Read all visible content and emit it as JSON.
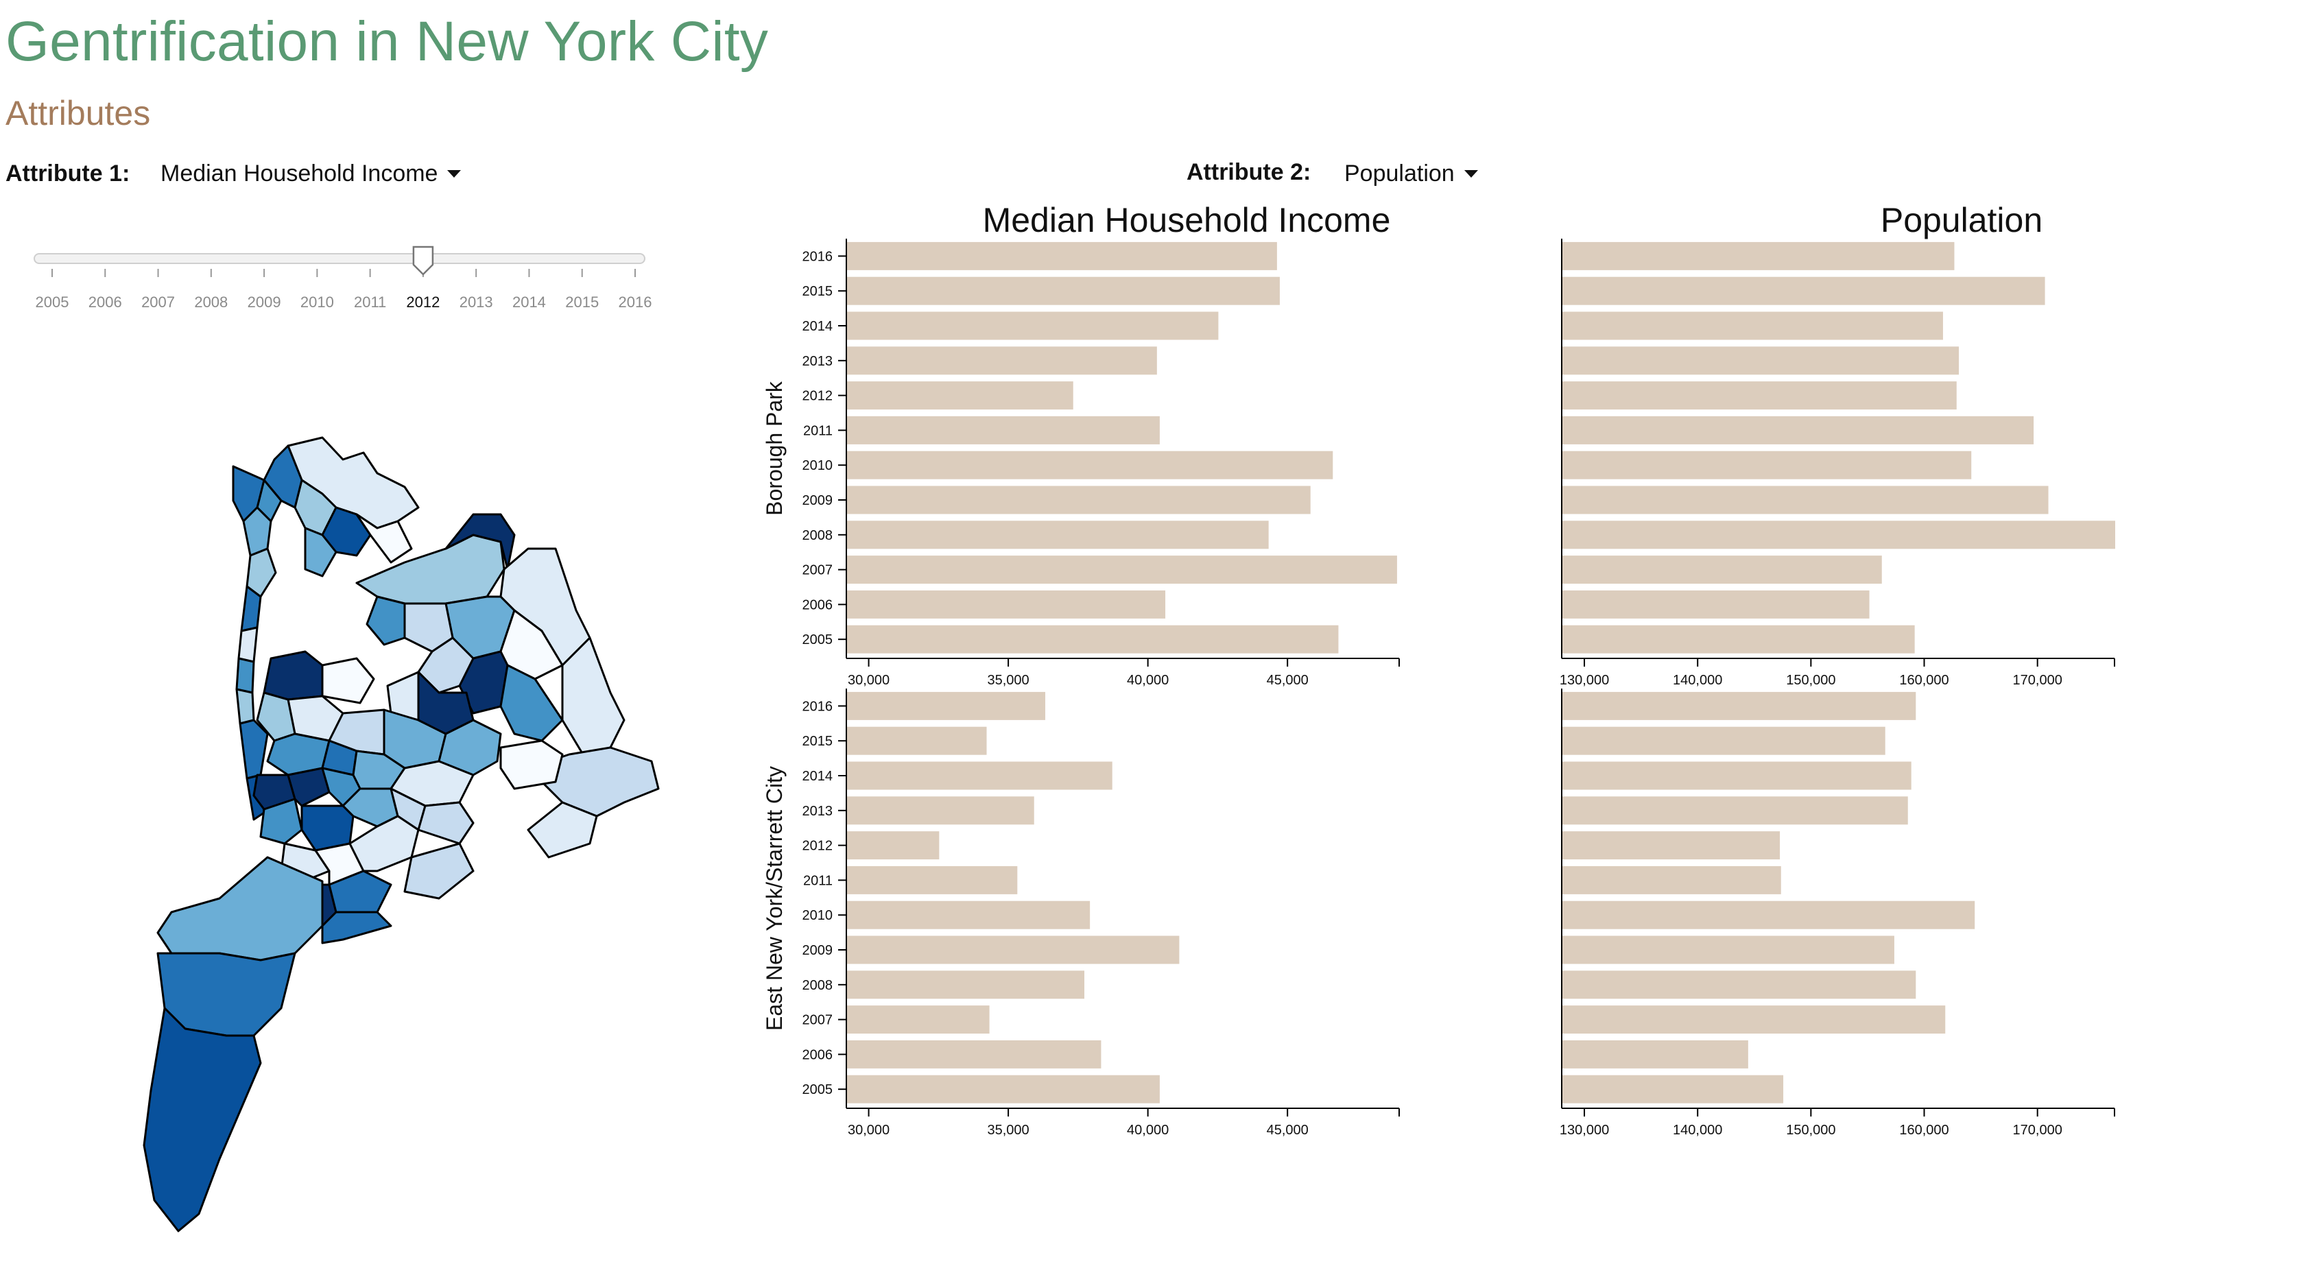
{
  "header": {
    "title": "Gentrification in New York City",
    "subtitle": "Attributes"
  },
  "controls": {
    "attribute1_label": "Attribute 1:",
    "attribute1_value": "Median Household Income",
    "attribute2_label": "Attribute 2:",
    "attribute2_value": "Population",
    "dropdown_icon": "caret-down-icon"
  },
  "year_slider": {
    "years": [
      "2005",
      "2006",
      "2007",
      "2008",
      "2009",
      "2010",
      "2011",
      "2012",
      "2013",
      "2014",
      "2015",
      "2016"
    ],
    "selected": "2012"
  },
  "map": {
    "palette": [
      "#f7fbff",
      "#deebf7",
      "#c6dbef",
      "#9ecae1",
      "#6baed6",
      "#4292c6",
      "#2171b5",
      "#08519c",
      "#08306b"
    ],
    "stroke": "#000000"
  },
  "colors": {
    "bar": "#dccdbd",
    "title_green": "#5a9a73",
    "subtitle_brown": "#a47c5c"
  },
  "chart_data": [
    {
      "type": "bar",
      "orientation": "horizontal",
      "title": "Median Household Income",
      "ylabel": "Borough Park",
      "categories": [
        "2016",
        "2015",
        "2014",
        "2013",
        "2012",
        "2011",
        "2010",
        "2009",
        "2008",
        "2007",
        "2006",
        "2005"
      ],
      "values": [
        44600,
        44700,
        42500,
        40300,
        37300,
        40400,
        46600,
        45800,
        44300,
        48900,
        40600,
        46800
      ],
      "xlim": [
        29200,
        49000
      ],
      "xticks": [
        "30,000",
        "35,000",
        "40,000",
        "45,000"
      ],
      "xtick_values": [
        30000,
        35000,
        40000,
        45000
      ]
    },
    {
      "type": "bar",
      "orientation": "horizontal",
      "title": "Population",
      "ylabel": "",
      "categories": [
        "2016",
        "2015",
        "2014",
        "2013",
        "2012",
        "2011",
        "2010",
        "2009",
        "2008",
        "2007",
        "2006",
        "2005"
      ],
      "values": [
        162600,
        170600,
        161600,
        163000,
        162800,
        169600,
        164100,
        170900,
        176800,
        156200,
        155100,
        159100
      ],
      "xlim": [
        128000,
        176800
      ],
      "xticks": [
        "130,000",
        "140,000",
        "150,000",
        "160,000",
        "170,000"
      ],
      "xtick_values": [
        130000,
        140000,
        150000,
        160000,
        170000
      ]
    },
    {
      "type": "bar",
      "orientation": "horizontal",
      "title": "",
      "ylabel": "East New York/Starrett City",
      "categories": [
        "2016",
        "2015",
        "2014",
        "2013",
        "2012",
        "2011",
        "2010",
        "2009",
        "2008",
        "2007",
        "2006",
        "2005"
      ],
      "values": [
        36300,
        34200,
        38700,
        35900,
        32500,
        35300,
        37900,
        41100,
        37700,
        34300,
        38300,
        40400
      ],
      "xlim": [
        29200,
        49000
      ],
      "xticks": [
        "30,000",
        "35,000",
        "40,000",
        "45,000"
      ],
      "xtick_values": [
        30000,
        35000,
        40000,
        45000
      ]
    },
    {
      "type": "bar",
      "orientation": "horizontal",
      "title": "",
      "ylabel": "",
      "categories": [
        "2016",
        "2015",
        "2014",
        "2013",
        "2012",
        "2011",
        "2010",
        "2009",
        "2008",
        "2007",
        "2006",
        "2005"
      ],
      "values": [
        159200,
        156500,
        158800,
        158500,
        147200,
        147300,
        164400,
        157300,
        159200,
        161800,
        144400,
        147500
      ],
      "xlim": [
        128000,
        176800
      ],
      "xticks": [
        "130,000",
        "140,000",
        "150,000",
        "160,000",
        "170,000"
      ],
      "xtick_values": [
        130000,
        140000,
        150000,
        160000,
        170000
      ]
    }
  ]
}
